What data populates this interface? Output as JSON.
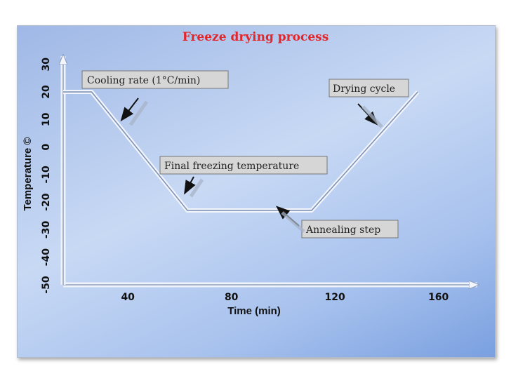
{
  "chart_data": {
    "type": "line",
    "title": "Freeze drying process",
    "xlabel": "Time (min)",
    "ylabel": "Temperature ©",
    "xticks": [
      40,
      80,
      120,
      160
    ],
    "yticks": [
      -50,
      -40,
      -30,
      -20,
      -10,
      0,
      10,
      20,
      30
    ],
    "xlim": [
      15,
      175
    ],
    "ylim": [
      -50,
      33
    ],
    "grid": false,
    "series": [
      {
        "x": [
          15,
          26,
          63,
          111,
          152
        ],
        "y": [
          20,
          20,
          -23,
          -23,
          20
        ]
      }
    ],
    "annotations": [
      "Cooling rate (1°C/min)",
      "Drying cycle",
      "Final freezing temperature",
      "Annealing step"
    ]
  }
}
